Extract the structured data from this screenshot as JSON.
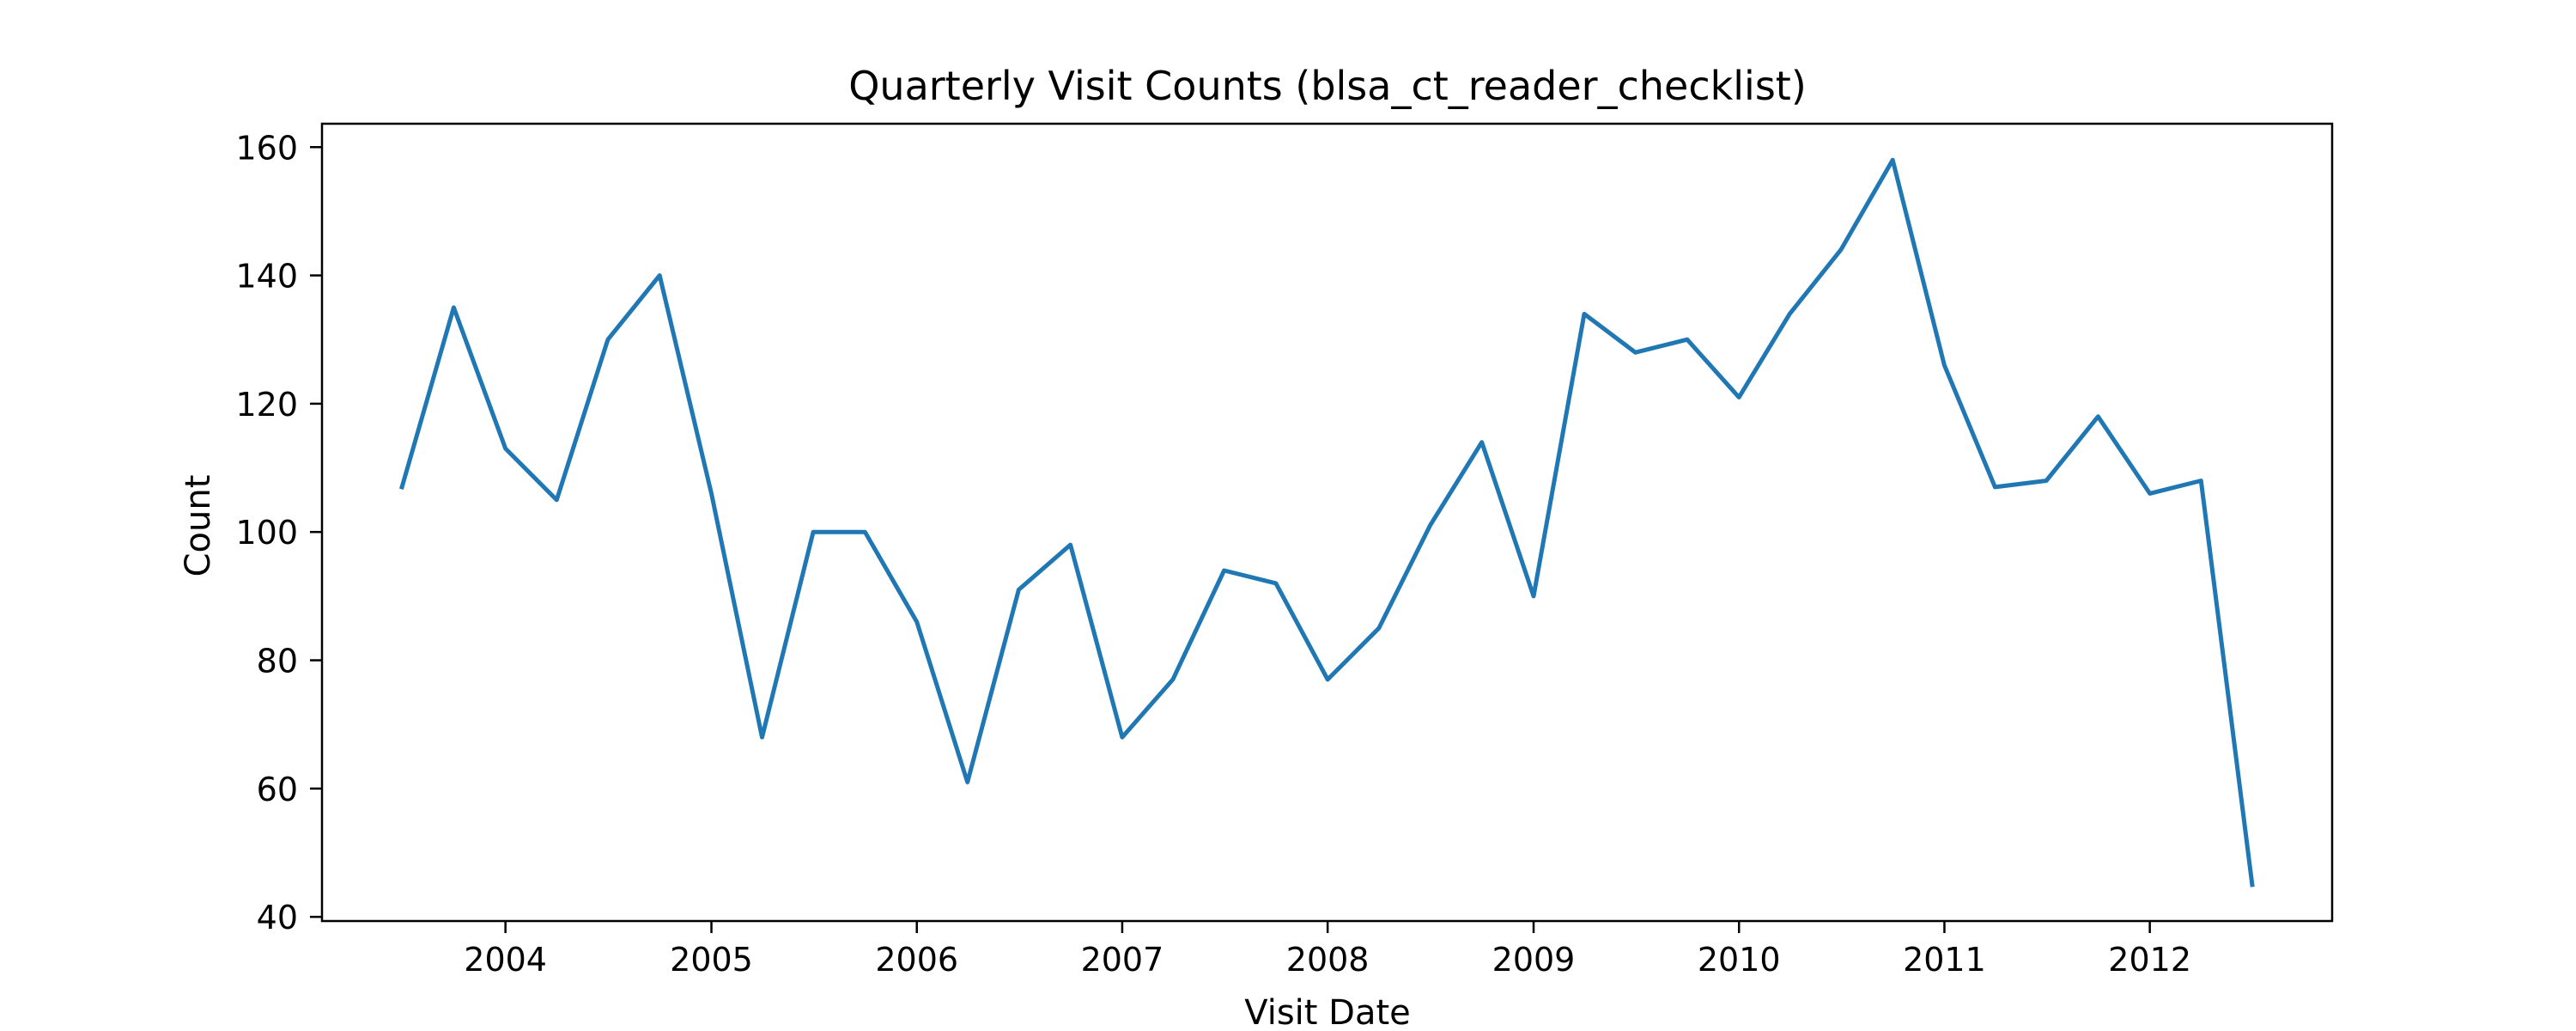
{
  "chart_data": {
    "type": "line",
    "title": "Quarterly Visit Counts (blsa_ct_reader_checklist)",
    "xlabel": "Visit Date",
    "ylabel": "Count",
    "x_axis": "date",
    "xlim": [
      "2003-02-09",
      "2012-11-20"
    ],
    "ylim": [
      39.35,
      163.65
    ],
    "x_ticks": [
      {
        "date": "2004-01-01",
        "label": "2004"
      },
      {
        "date": "2005-01-01",
        "label": "2005"
      },
      {
        "date": "2006-01-01",
        "label": "2006"
      },
      {
        "date": "2007-01-01",
        "label": "2007"
      },
      {
        "date": "2008-01-01",
        "label": "2008"
      },
      {
        "date": "2009-01-01",
        "label": "2009"
      },
      {
        "date": "2010-01-01",
        "label": "2010"
      },
      {
        "date": "2011-01-01",
        "label": "2011"
      },
      {
        "date": "2012-01-01",
        "label": "2012"
      }
    ],
    "y_ticks": [
      40,
      60,
      80,
      100,
      120,
      140,
      160
    ],
    "grid": false,
    "line_color": "#1f77b4",
    "series": [
      {
        "x": [
          "2003-07-01",
          "2003-10-01",
          "2004-01-01",
          "2004-04-01",
          "2004-07-01",
          "2004-10-01",
          "2005-01-01",
          "2005-04-01",
          "2005-07-01",
          "2005-10-01",
          "2006-01-01",
          "2006-04-01",
          "2006-07-01",
          "2006-10-01",
          "2007-01-01",
          "2007-04-01",
          "2007-07-01",
          "2007-10-01",
          "2008-01-01",
          "2008-04-01",
          "2008-07-01",
          "2008-10-01",
          "2009-01-01",
          "2009-04-01",
          "2009-07-01",
          "2009-10-01",
          "2010-01-01",
          "2010-04-01",
          "2010-07-01",
          "2010-10-01",
          "2011-01-01",
          "2011-04-01",
          "2011-07-01",
          "2011-10-01",
          "2012-01-01",
          "2012-04-01",
          "2012-07-01"
        ],
        "values": [
          107,
          135,
          113,
          105,
          130,
          140,
          106,
          68,
          100,
          100,
          86,
          61,
          91,
          98,
          68,
          77,
          94,
          92,
          77,
          85,
          101,
          114,
          90,
          134,
          128,
          130,
          121,
          134,
          144,
          158,
          126,
          107,
          108,
          118,
          106,
          108,
          45
        ]
      }
    ]
  }
}
